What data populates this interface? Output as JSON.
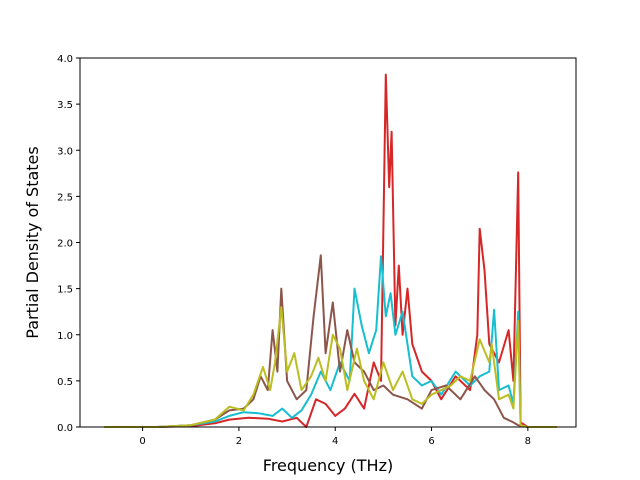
{
  "chart_data": {
    "type": "line",
    "title": "",
    "xlabel": "Frequency (THz)",
    "ylabel": "Partial Density of States",
    "xlim": [
      -1.3,
      9.0
    ],
    "ylim": [
      0.0,
      4.0
    ],
    "xticks": [
      0,
      2,
      4,
      6,
      8
    ],
    "yticks": [
      0.0,
      0.5,
      1.0,
      1.5,
      2.0,
      2.5,
      3.0,
      3.5,
      4.0
    ],
    "grid": false,
    "legend": "none",
    "series": [
      {
        "color": "#d62728",
        "points": [
          [
            -0.8,
            0
          ],
          [
            0.3,
            0
          ],
          [
            1.0,
            0.01
          ],
          [
            1.5,
            0.04
          ],
          [
            1.8,
            0.08
          ],
          [
            2.2,
            0.1
          ],
          [
            2.6,
            0.09
          ],
          [
            2.9,
            0.06
          ],
          [
            3.2,
            0.1
          ],
          [
            3.4,
            0.0
          ],
          [
            3.6,
            0.3
          ],
          [
            3.8,
            0.25
          ],
          [
            4.0,
            0.12
          ],
          [
            4.2,
            0.2
          ],
          [
            4.4,
            0.36
          ],
          [
            4.6,
            0.2
          ],
          [
            4.8,
            0.7
          ],
          [
            4.95,
            0.5
          ],
          [
            5.05,
            3.82
          ],
          [
            5.12,
            2.6
          ],
          [
            5.17,
            3.2
          ],
          [
            5.25,
            1.1
          ],
          [
            5.32,
            1.75
          ],
          [
            5.4,
            1.0
          ],
          [
            5.5,
            1.5
          ],
          [
            5.6,
            0.9
          ],
          [
            5.8,
            0.6
          ],
          [
            6.0,
            0.5
          ],
          [
            6.2,
            0.3
          ],
          [
            6.5,
            0.55
          ],
          [
            6.8,
            0.4
          ],
          [
            6.95,
            1.0
          ],
          [
            7.0,
            2.15
          ],
          [
            7.1,
            1.7
          ],
          [
            7.2,
            0.9
          ],
          [
            7.4,
            0.7
          ],
          [
            7.6,
            1.05
          ],
          [
            7.7,
            0.5
          ],
          [
            7.8,
            2.76
          ],
          [
            7.85,
            0.05
          ],
          [
            8.0,
            0
          ],
          [
            8.6,
            0
          ]
        ]
      },
      {
        "color": "#17becf",
        "points": [
          [
            -0.8,
            0
          ],
          [
            0.3,
            0
          ],
          [
            1.0,
            0.02
          ],
          [
            1.5,
            0.06
          ],
          [
            1.8,
            0.12
          ],
          [
            2.1,
            0.16
          ],
          [
            2.4,
            0.15
          ],
          [
            2.7,
            0.12
          ],
          [
            2.9,
            0.2
          ],
          [
            3.1,
            0.1
          ],
          [
            3.3,
            0.18
          ],
          [
            3.5,
            0.35
          ],
          [
            3.7,
            0.6
          ],
          [
            3.9,
            0.4
          ],
          [
            4.1,
            0.7
          ],
          [
            4.3,
            0.5
          ],
          [
            4.4,
            1.5
          ],
          [
            4.55,
            1.1
          ],
          [
            4.7,
            0.8
          ],
          [
            4.85,
            1.05
          ],
          [
            4.95,
            1.85
          ],
          [
            5.05,
            1.2
          ],
          [
            5.15,
            1.45
          ],
          [
            5.25,
            1.0
          ],
          [
            5.4,
            1.25
          ],
          [
            5.6,
            0.55
          ],
          [
            5.8,
            0.45
          ],
          [
            6.0,
            0.5
          ],
          [
            6.2,
            0.35
          ],
          [
            6.5,
            0.6
          ],
          [
            6.8,
            0.45
          ],
          [
            7.0,
            0.55
          ],
          [
            7.2,
            0.6
          ],
          [
            7.3,
            1.27
          ],
          [
            7.4,
            0.4
          ],
          [
            7.6,
            0.45
          ],
          [
            7.7,
            0.25
          ],
          [
            7.8,
            1.25
          ],
          [
            7.85,
            0.02
          ],
          [
            8.0,
            0
          ],
          [
            8.6,
            0
          ]
        ]
      },
      {
        "color": "#8c564b",
        "points": [
          [
            -0.8,
            0
          ],
          [
            0.3,
            0
          ],
          [
            1.0,
            0.02
          ],
          [
            1.5,
            0.08
          ],
          [
            1.8,
            0.18
          ],
          [
            2.1,
            0.2
          ],
          [
            2.3,
            0.3
          ],
          [
            2.45,
            0.55
          ],
          [
            2.6,
            0.4
          ],
          [
            2.7,
            1.05
          ],
          [
            2.8,
            0.6
          ],
          [
            2.88,
            1.5
          ],
          [
            3.0,
            0.5
          ],
          [
            3.2,
            0.3
          ],
          [
            3.4,
            0.4
          ],
          [
            3.55,
            1.2
          ],
          [
            3.7,
            1.86
          ],
          [
            3.8,
            0.8
          ],
          [
            3.95,
            1.35
          ],
          [
            4.1,
            0.6
          ],
          [
            4.25,
            1.05
          ],
          [
            4.4,
            0.7
          ],
          [
            4.6,
            0.6
          ],
          [
            4.8,
            0.4
          ],
          [
            5.0,
            0.45
          ],
          [
            5.2,
            0.35
          ],
          [
            5.5,
            0.3
          ],
          [
            5.8,
            0.2
          ],
          [
            6.0,
            0.4
          ],
          [
            6.3,
            0.45
          ],
          [
            6.6,
            0.3
          ],
          [
            6.9,
            0.55
          ],
          [
            7.1,
            0.4
          ],
          [
            7.3,
            0.3
          ],
          [
            7.5,
            0.1
          ],
          [
            7.7,
            0.05
          ],
          [
            7.8,
            0.02
          ],
          [
            8.0,
            0
          ],
          [
            8.6,
            0
          ]
        ]
      },
      {
        "color": "#bcbd22",
        "points": [
          [
            -0.8,
            0
          ],
          [
            0.3,
            0
          ],
          [
            1.0,
            0.02
          ],
          [
            1.5,
            0.08
          ],
          [
            1.8,
            0.22
          ],
          [
            2.1,
            0.18
          ],
          [
            2.3,
            0.35
          ],
          [
            2.5,
            0.65
          ],
          [
            2.65,
            0.4
          ],
          [
            2.75,
            0.7
          ],
          [
            2.88,
            1.3
          ],
          [
            3.0,
            0.6
          ],
          [
            3.15,
            0.8
          ],
          [
            3.3,
            0.4
          ],
          [
            3.5,
            0.55
          ],
          [
            3.65,
            0.75
          ],
          [
            3.8,
            0.5
          ],
          [
            3.95,
            1.0
          ],
          [
            4.1,
            0.85
          ],
          [
            4.25,
            0.4
          ],
          [
            4.45,
            0.85
          ],
          [
            4.6,
            0.5
          ],
          [
            4.8,
            0.3
          ],
          [
            5.0,
            0.7
          ],
          [
            5.2,
            0.4
          ],
          [
            5.4,
            0.6
          ],
          [
            5.6,
            0.3
          ],
          [
            5.8,
            0.25
          ],
          [
            6.0,
            0.35
          ],
          [
            6.2,
            0.4
          ],
          [
            6.4,
            0.45
          ],
          [
            6.6,
            0.55
          ],
          [
            6.8,
            0.5
          ],
          [
            7.0,
            0.95
          ],
          [
            7.2,
            0.7
          ],
          [
            7.25,
            0.9
          ],
          [
            7.4,
            0.3
          ],
          [
            7.6,
            0.35
          ],
          [
            7.7,
            0.2
          ],
          [
            7.8,
            1.15
          ],
          [
            7.85,
            0.02
          ],
          [
            8.0,
            0
          ],
          [
            8.6,
            0
          ]
        ]
      }
    ]
  }
}
